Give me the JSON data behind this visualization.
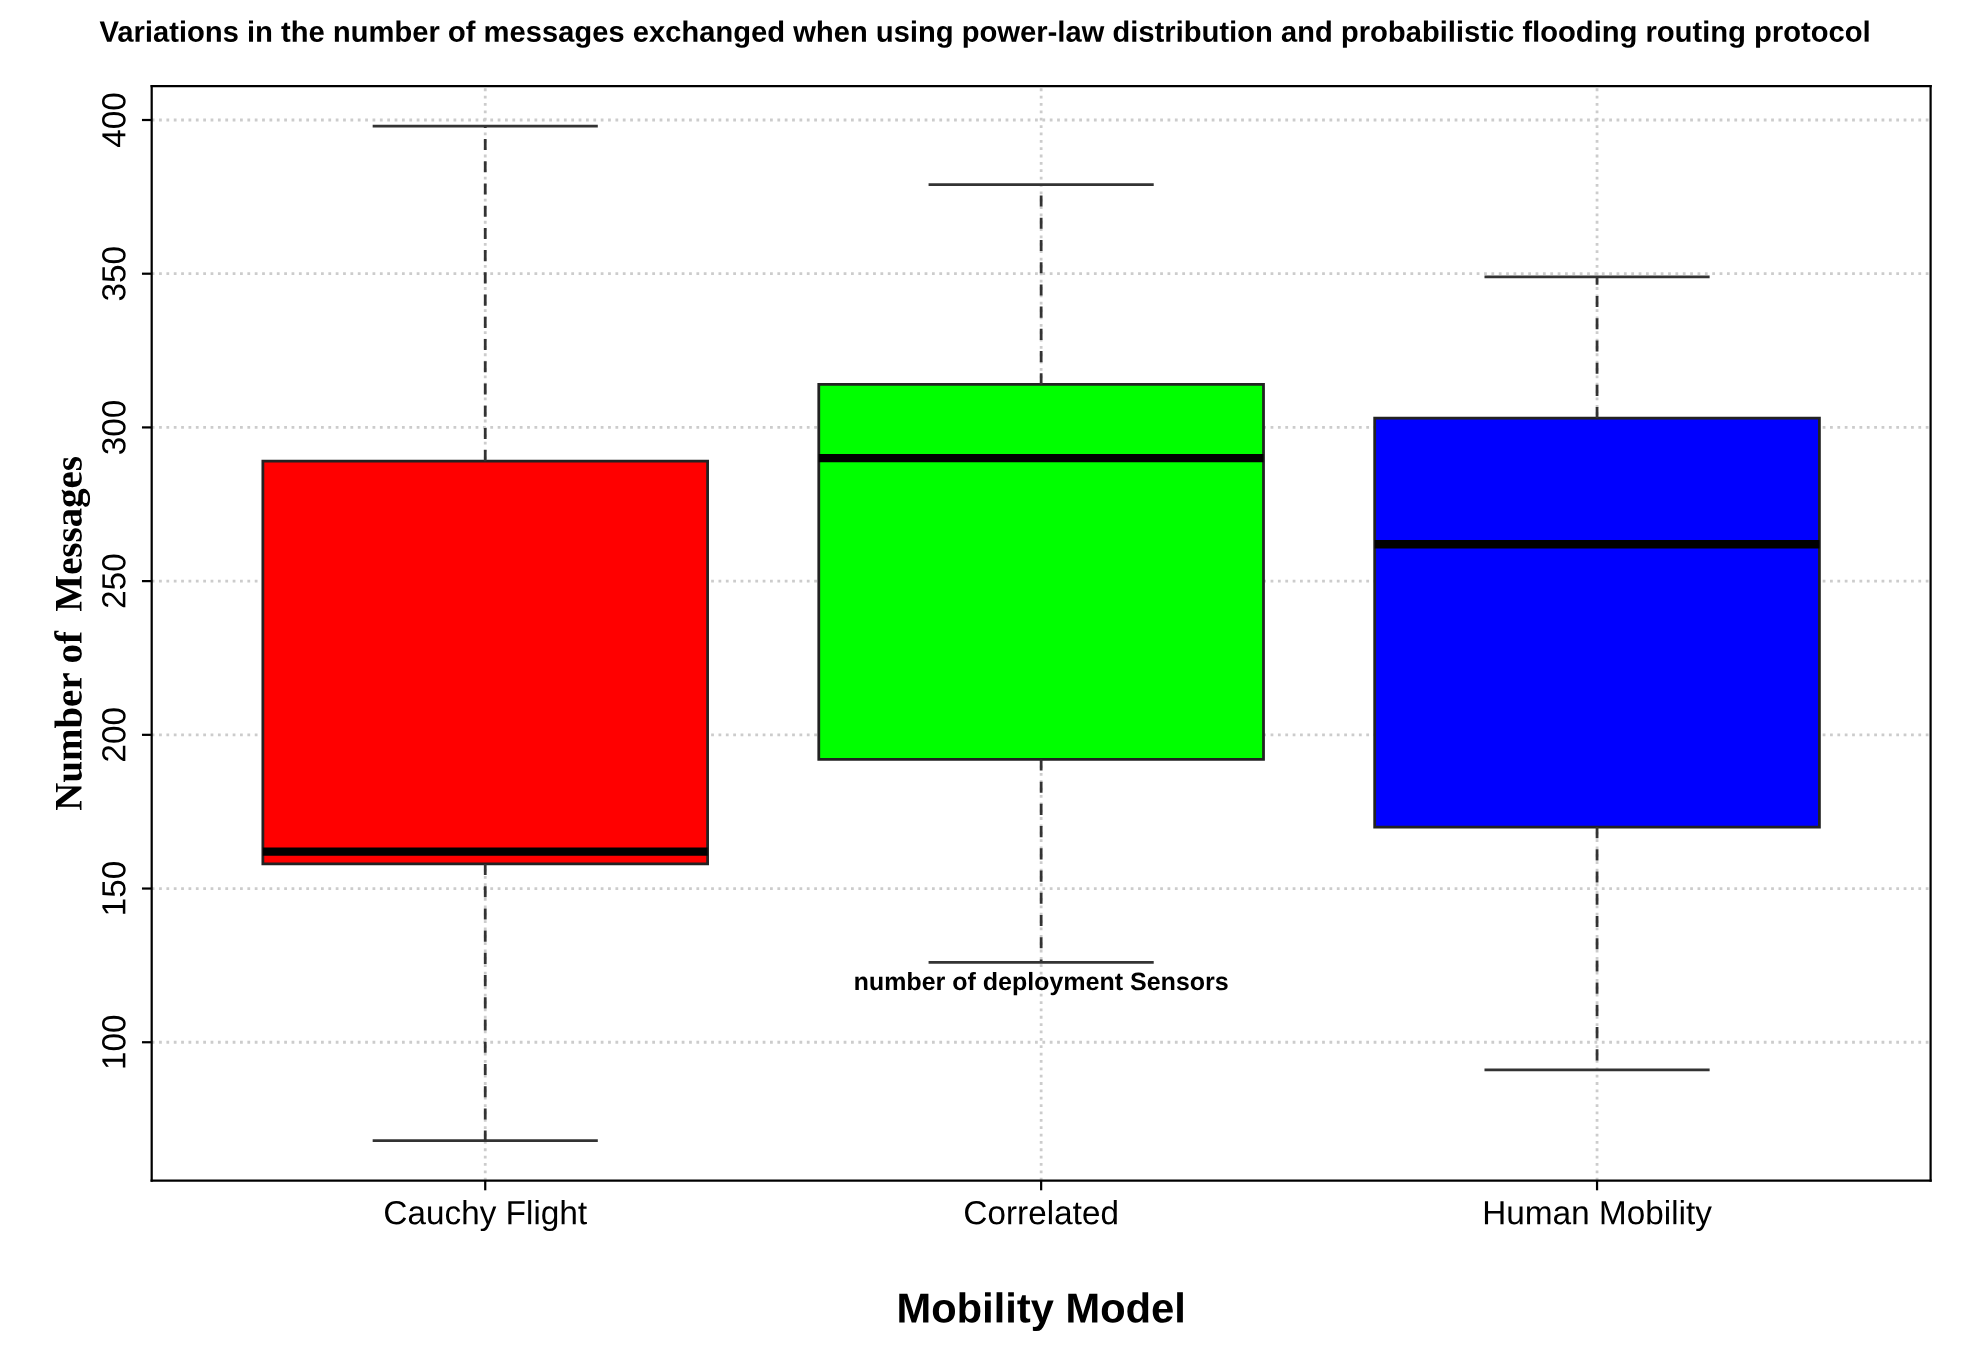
{
  "chart_data": {
    "type": "box",
    "title": "Variations in the number of messages exchanged when using power-law distribution and probabilistic flooding routing protocol",
    "xlabel": "Mobility Model",
    "ylabel": "Number of  Messages",
    "categories": [
      "Cauchy Flight",
      "Correlated",
      "Human Mobility"
    ],
    "colors": [
      "#ff0000",
      "#00ff00",
      "#0000ff"
    ],
    "boxes": [
      {
        "low": 68,
        "q1": 158,
        "median": 162,
        "q3": 289,
        "high": 398
      },
      {
        "low": 126,
        "q1": 192,
        "median": 290,
        "q3": 314,
        "high": 379
      },
      {
        "low": 91,
        "q1": 170,
        "median": 262,
        "q3": 303,
        "high": 349
      }
    ],
    "ylim": [
      55,
      411
    ],
    "yticks": [
      100,
      150,
      200,
      250,
      300,
      350,
      400
    ],
    "grid": true,
    "annotations": [
      "number of deployment Sensors"
    ]
  }
}
